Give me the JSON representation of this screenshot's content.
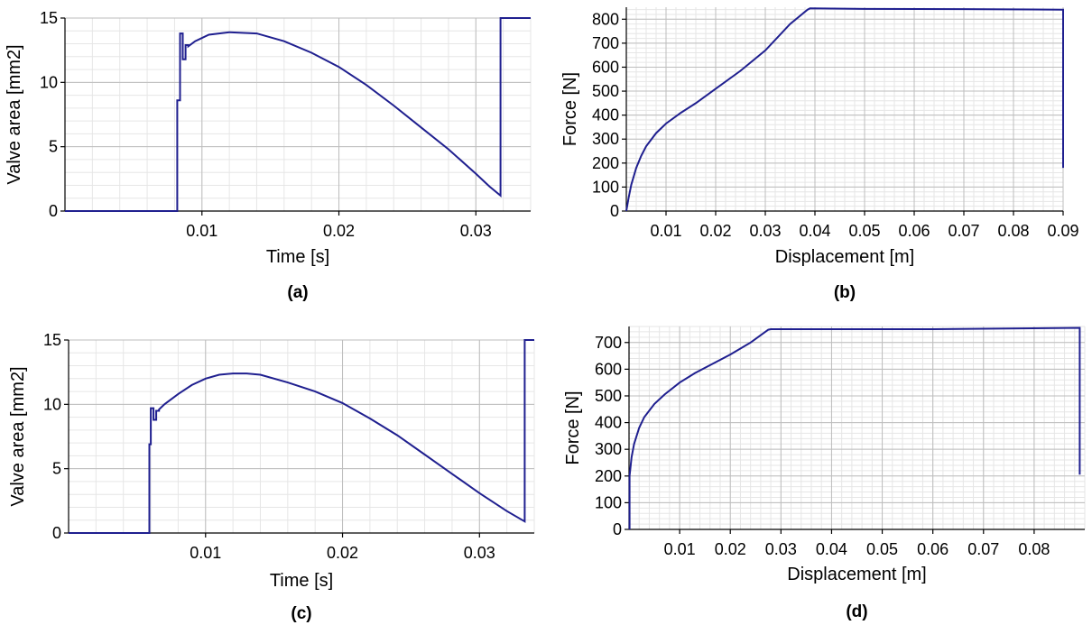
{
  "colors": {
    "series": "#1f1f8f",
    "grid_major": "#bdbdbd",
    "grid_minor": "#e6e6e6"
  },
  "chart_data": [
    {
      "id": "a",
      "panel_label": "(a)",
      "type": "line",
      "title": "",
      "xlabel": "Time [s]",
      "ylabel": "Valve area [mm2]",
      "xlim": [
        0,
        0.034
      ],
      "ylim": [
        0,
        15
      ],
      "x_ticks": [
        0.01,
        0.02,
        0.03
      ],
      "x_tick_labels": [
        "0.01",
        "0.02",
        "0.03"
      ],
      "y_ticks": [
        0,
        5,
        10,
        15
      ],
      "y_tick_labels": [
        "0",
        "5",
        "10",
        "15"
      ],
      "grid": true,
      "series": [
        {
          "x": [
            0,
            0.0082,
            0.0082,
            0.0084,
            0.0084,
            0.0086,
            0.0086,
            0.0088,
            0.0088,
            0.009,
            0.009,
            0.0095,
            0.0105,
            0.012,
            0.014,
            0.016,
            0.018,
            0.02,
            0.022,
            0.024,
            0.026,
            0.028,
            0.03,
            0.031,
            0.0318,
            0.0318,
            0.034
          ],
          "y": [
            0,
            0,
            8.6,
            8.6,
            13.8,
            13.8,
            11.8,
            11.8,
            12.9,
            12.9,
            12.8,
            13.2,
            13.7,
            13.9,
            13.8,
            13.2,
            12.3,
            11.2,
            9.8,
            8.2,
            6.5,
            4.8,
            2.9,
            1.9,
            1.2,
            15,
            15
          ]
        }
      ]
    },
    {
      "id": "b",
      "panel_label": "(b)",
      "type": "line",
      "title": "",
      "xlabel": "Displacement [m]",
      "ylabel": "Force [N]",
      "xlim": [
        0.002,
        0.09
      ],
      "ylim": [
        0,
        850
      ],
      "x_ticks": [
        0.01,
        0.02,
        0.03,
        0.04,
        0.05,
        0.06,
        0.07,
        0.08,
        0.09
      ],
      "x_tick_labels": [
        "0.01",
        "0.02",
        "0.03",
        "0.04",
        "0.05",
        "0.06",
        "0.07",
        "0.08",
        "0.09"
      ],
      "y_ticks": [
        0,
        100,
        200,
        300,
        400,
        500,
        600,
        700,
        800
      ],
      "y_tick_labels": [
        "0",
        "100",
        "200",
        "300",
        "400",
        "500",
        "600",
        "700",
        "800"
      ],
      "grid": true,
      "series": [
        {
          "x": [
            0.002,
            0.0025,
            0.003,
            0.004,
            0.005,
            0.006,
            0.008,
            0.01,
            0.013,
            0.016,
            0.02,
            0.025,
            0.03,
            0.035,
            0.0385,
            0.039,
            0.05,
            0.07,
            0.09,
            0.09
          ],
          "y": [
            0,
            60,
            110,
            180,
            230,
            270,
            325,
            365,
            410,
            450,
            510,
            585,
            670,
            780,
            840,
            845,
            843,
            842,
            840,
            180
          ]
        }
      ]
    },
    {
      "id": "c",
      "panel_label": "(c)",
      "type": "line",
      "title": "",
      "xlabel": "Time [s]",
      "ylabel": "Valve area [mm2]",
      "xlim": [
        0,
        0.034
      ],
      "ylim": [
        0,
        15
      ],
      "x_ticks": [
        0.01,
        0.02,
        0.03
      ],
      "x_tick_labels": [
        "0.01",
        "0.02",
        "0.03"
      ],
      "y_ticks": [
        0,
        5,
        10,
        15
      ],
      "y_tick_labels": [
        "0",
        "5",
        "10",
        "15"
      ],
      "grid": true,
      "series": [
        {
          "x": [
            0,
            0.0059,
            0.0059,
            0.006,
            0.006,
            0.0062,
            0.0062,
            0.0064,
            0.0064,
            0.0066,
            0.0066,
            0.007,
            0.008,
            0.009,
            0.01,
            0.011,
            0.012,
            0.013,
            0.014,
            0.016,
            0.018,
            0.02,
            0.022,
            0.024,
            0.026,
            0.028,
            0.03,
            0.032,
            0.0333,
            0.0333,
            0.034
          ],
          "y": [
            0,
            0,
            6.9,
            6.9,
            9.7,
            9.7,
            8.8,
            8.8,
            9.5,
            9.5,
            9.6,
            10.0,
            10.8,
            11.5,
            12.0,
            12.3,
            12.4,
            12.4,
            12.3,
            11.7,
            11.0,
            10.1,
            8.9,
            7.6,
            6.1,
            4.6,
            3.1,
            1.7,
            0.9,
            15,
            15
          ]
        }
      ]
    },
    {
      "id": "d",
      "panel_label": "(d)",
      "type": "line",
      "title": "",
      "xlabel": "Displacement [m]",
      "ylabel": "Force [N]",
      "xlim": [
        0,
        0.09
      ],
      "ylim": [
        0,
        760
      ],
      "x_ticks": [
        0.01,
        0.02,
        0.03,
        0.04,
        0.05,
        0.06,
        0.07,
        0.08
      ],
      "x_tick_labels": [
        "0.01",
        "0.02",
        "0.03",
        "0.04",
        "0.05",
        "0.06",
        "0.07",
        "0.08"
      ],
      "y_ticks": [
        0,
        100,
        200,
        300,
        400,
        500,
        600,
        700
      ],
      "y_tick_labels": [
        "0",
        "100",
        "200",
        "300",
        "400",
        "500",
        "600",
        "700"
      ],
      "grid": true,
      "series": [
        {
          "x": [
            0.0001,
            0.0001,
            0.0005,
            0.001,
            0.002,
            0.003,
            0.005,
            0.007,
            0.01,
            0.013,
            0.016,
            0.02,
            0.024,
            0.0275,
            0.028,
            0.06,
            0.089,
            0.089
          ],
          "y": [
            0,
            200,
            270,
            320,
            380,
            420,
            470,
            505,
            550,
            585,
            615,
            655,
            700,
            748,
            750,
            750,
            755,
            205
          ]
        }
      ]
    }
  ]
}
